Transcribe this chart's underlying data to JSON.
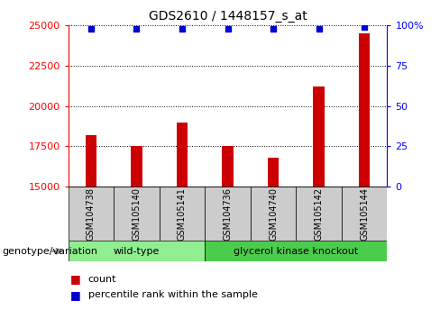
{
  "title": "GDS2610 / 1448157_s_at",
  "samples": [
    "GSM104738",
    "GSM105140",
    "GSM105141",
    "GSM104736",
    "GSM104740",
    "GSM105142",
    "GSM105144"
  ],
  "counts": [
    18200,
    17500,
    19000,
    17550,
    16800,
    21200,
    24500
  ],
  "percentiles": [
    98,
    98,
    98,
    98,
    98,
    98,
    99
  ],
  "groups": [
    {
      "label": "wild-type",
      "start": 0,
      "end": 3,
      "color": "#90EE90"
    },
    {
      "label": "glycerol kinase knockout",
      "start": 3,
      "end": 7,
      "color": "#4CCC4C"
    }
  ],
  "bar_color": "#CC0000",
  "percentile_color": "#0000CC",
  "ylim_left": [
    15000,
    25000
  ],
  "ylim_right": [
    0,
    100
  ],
  "yticks_left": [
    15000,
    17500,
    20000,
    22500,
    25000
  ],
  "yticks_right": [
    0,
    25,
    50,
    75,
    100
  ],
  "grid_values": [
    17500,
    20000,
    22500,
    25000
  ],
  "bar_width": 0.25,
  "legend_count_label": "count",
  "legend_pct_label": "percentile rank within the sample",
  "genotype_label": "genotype/variation",
  "bg_sample_color": "#CCCCCC",
  "title_fontsize": 10,
  "tick_fontsize": 8,
  "label_fontsize": 8,
  "sample_fontsize": 7,
  "group_fontsize": 8
}
